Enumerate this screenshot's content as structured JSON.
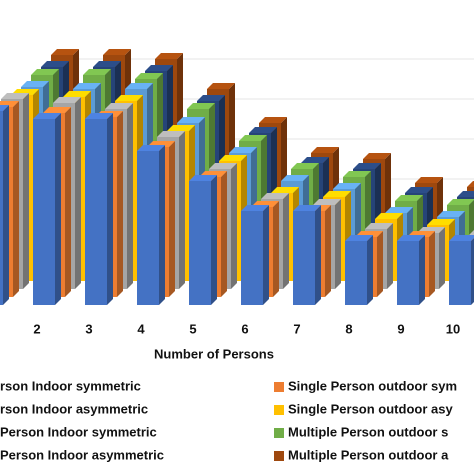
{
  "chart_data": {
    "type": "bar3d",
    "x_label": "Number of Persons",
    "categories": [
      null,
      "2",
      "3",
      "4",
      "5",
      "6",
      "7",
      "8",
      "9",
      "10"
    ],
    "ylim": [
      0,
      100
    ],
    "series": [
      {
        "name": "rson Indoor symmetric",
        "color": "#4472c4",
        "values": [
          97,
          93,
          93,
          77,
          62,
          47,
          47,
          32,
          32,
          32
        ]
      },
      {
        "name": "Single Person outdoor sym",
        "color": "#ed7d31",
        "values": [
          95,
          92,
          90,
          75,
          60,
          45,
          43,
          30,
          30,
          28
        ]
      },
      {
        "name": "rson Indoor asymmetric",
        "color": "#a5a5a5",
        "values": [
          95,
          93,
          90,
          76,
          60,
          45,
          42,
          30,
          28,
          27
        ]
      },
      {
        "name": "Single Person outdoor asy",
        "color": "#ffc000",
        "values": [
          93,
          92,
          90,
          75,
          60,
          44,
          42,
          31,
          28,
          26
        ]
      },
      {
        "name": "Person Indoor symmetric",
        "color": "#5b9bd5",
        "values": [
          93,
          92,
          92,
          75,
          60,
          46,
          42,
          30,
          28,
          26
        ]
      },
      {
        "name": "Multiple Person outdoor s",
        "color": "#70ad47",
        "values": [
          95,
          95,
          93,
          78,
          62,
          48,
          44,
          32,
          30,
          28
        ]
      },
      {
        "name": "Person Indoor asymmetric",
        "color": "#264478",
        "values": [
          95,
          95,
          93,
          78,
          62,
          47,
          44,
          32,
          30,
          28
        ]
      },
      {
        "name": "Multiple Person outdoor a",
        "color": "#9e480e",
        "values": [
          97,
          97,
          95,
          80,
          63,
          48,
          45,
          33,
          31,
          29
        ]
      }
    ]
  }
}
